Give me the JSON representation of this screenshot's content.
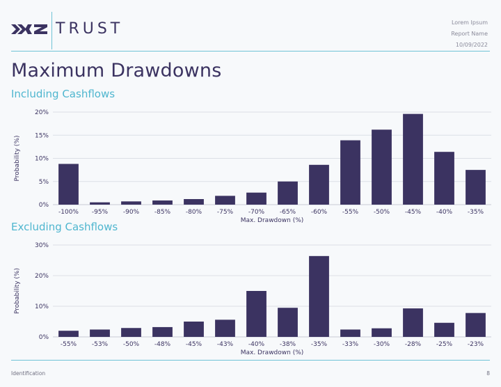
{
  "header": {
    "logo_mark": "XYZ",
    "logo_text": "TRUST",
    "meta": [
      "Lorem Ipsum",
      "Report Name",
      "10/09/2022"
    ]
  },
  "page_title": "Maximum Drawdowns",
  "sections": [
    {
      "title": "Including Cashflows"
    },
    {
      "title": "Excluding Cashflows"
    }
  ],
  "footer": {
    "left": "Identification",
    "right": "8"
  },
  "colors": {
    "bar": "#3b3361",
    "accent": "#6fc3d6",
    "title": "#3b3361",
    "subtitle": "#4fb6cf"
  },
  "chart_data": [
    {
      "type": "bar",
      "title": "Including Cashflows",
      "xlabel": "Max. Drawdown (%)",
      "ylabel": "Probability (%)",
      "categories": [
        "-100%",
        "-95%",
        "-90%",
        "-85%",
        "-80%",
        "-75%",
        "-70%",
        "-65%",
        "-60%",
        "-55%",
        "-50%",
        "-45%",
        "-40%",
        "-35%"
      ],
      "values": [
        8.8,
        0.5,
        0.7,
        0.9,
        1.2,
        1.9,
        2.6,
        5.0,
        8.6,
        13.9,
        16.2,
        19.6,
        11.4,
        7.5
      ],
      "yticks": [
        "0%",
        "5%",
        "10%",
        "15%",
        "20%"
      ],
      "ylim": [
        0,
        20
      ],
      "grid": true,
      "legend": "none"
    },
    {
      "type": "bar",
      "title": "Excluding Cashflows",
      "xlabel": "Max. Drawdown (%)",
      "ylabel": "Probability (%)",
      "categories": [
        "-55%",
        "-53%",
        "-50%",
        "-48%",
        "-45%",
        "-43%",
        "-40%",
        "-38%",
        "-35%",
        "-33%",
        "-30%",
        "-28%",
        "-25%",
        "-23%"
      ],
      "values": [
        2.0,
        2.4,
        2.9,
        3.2,
        5.0,
        5.6,
        15.0,
        9.5,
        26.4,
        2.4,
        2.8,
        9.3,
        4.6,
        7.8
      ],
      "yticks": [
        "0%",
        "10%",
        "20%",
        "30%"
      ],
      "ylim": [
        0,
        30
      ],
      "grid": true,
      "legend": "none"
    }
  ]
}
